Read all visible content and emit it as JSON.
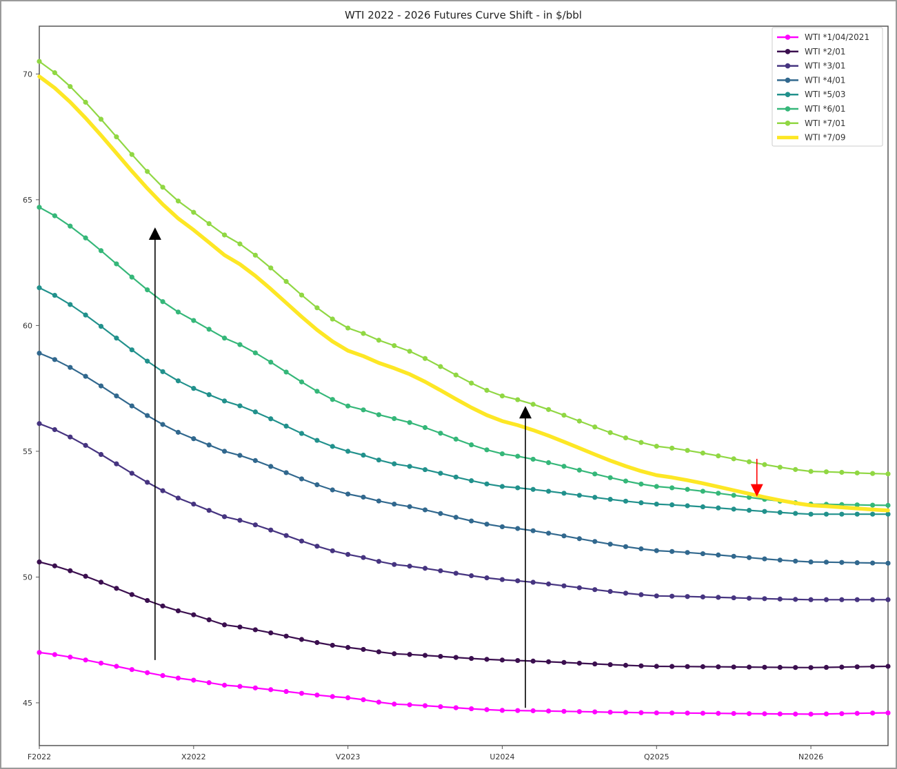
{
  "chart_data": {
    "type": "line",
    "title": "WTI 2022 - 2026 Futures Curve Shift - in $/bbl",
    "xlabel": "",
    "ylabel": "",
    "x_tick_labels": [
      "F2022",
      "X2022",
      "V2023",
      "U2024",
      "Q2025",
      "N2026"
    ],
    "y_ticks": [
      45,
      50,
      55,
      60,
      65,
      70
    ],
    "ylim": [
      43.3,
      71.9
    ],
    "grid": false,
    "legend_position": "top-right",
    "series": [
      {
        "name": "WTI *1/04/2021",
        "color": "#ff00ff",
        "marker": true,
        "key": [
          [
            0,
            47.0
          ],
          [
            10,
            45.9
          ],
          [
            12,
            45.7
          ],
          [
            20,
            45.2
          ],
          [
            23,
            44.95
          ],
          [
            30,
            44.7
          ],
          [
            40,
            44.6
          ],
          [
            50,
            44.55
          ],
          [
            55,
            44.6
          ]
        ]
      },
      {
        "name": "WTI *2/01",
        "color": "#3b0f4f",
        "marker": true,
        "key": [
          [
            0,
            50.6
          ],
          [
            10,
            48.5
          ],
          [
            12,
            48.1
          ],
          [
            20,
            47.2
          ],
          [
            23,
            46.95
          ],
          [
            30,
            46.7
          ],
          [
            40,
            46.45
          ],
          [
            50,
            46.4
          ],
          [
            55,
            46.45
          ]
        ]
      },
      {
        "name": "WTI *3/01",
        "color": "#463480",
        "marker": true,
        "key": [
          [
            0,
            56.1
          ],
          [
            10,
            52.9
          ],
          [
            12,
            52.4
          ],
          [
            20,
            50.9
          ],
          [
            23,
            50.5
          ],
          [
            30,
            49.9
          ],
          [
            40,
            49.25
          ],
          [
            50,
            49.1
          ],
          [
            55,
            49.1
          ]
        ]
      },
      {
        "name": "WTI *4/01",
        "color": "#31688e",
        "marker": true,
        "key": [
          [
            0,
            58.9
          ],
          [
            10,
            55.5
          ],
          [
            12,
            55.0
          ],
          [
            20,
            53.3
          ],
          [
            23,
            52.9
          ],
          [
            30,
            52.0
          ],
          [
            40,
            51.05
          ],
          [
            50,
            50.6
          ],
          [
            55,
            50.55
          ]
        ]
      },
      {
        "name": "WTI *5/03",
        "color": "#21918c",
        "marker": true,
        "key": [
          [
            0,
            61.5
          ],
          [
            10,
            57.5
          ],
          [
            12,
            57.0
          ],
          [
            20,
            55.0
          ],
          [
            23,
            54.5
          ],
          [
            30,
            53.6
          ],
          [
            40,
            52.9
          ],
          [
            50,
            52.5
          ],
          [
            55,
            52.5
          ]
        ]
      },
      {
        "name": "WTI *6/01",
        "color": "#35b779",
        "marker": true,
        "key": [
          [
            0,
            64.7
          ],
          [
            10,
            60.2
          ],
          [
            12,
            59.5
          ],
          [
            20,
            56.8
          ],
          [
            23,
            56.3
          ],
          [
            30,
            54.9
          ],
          [
            40,
            53.6
          ],
          [
            50,
            52.9
          ],
          [
            55,
            52.85
          ]
        ]
      },
      {
        "name": "WTI *7/01",
        "color": "#90d743",
        "marker": true,
        "key": [
          [
            0,
            70.5
          ],
          [
            10,
            64.5
          ],
          [
            12,
            63.6
          ],
          [
            20,
            59.9
          ],
          [
            23,
            59.2
          ],
          [
            30,
            57.2
          ],
          [
            40,
            55.2
          ],
          [
            50,
            54.2
          ],
          [
            55,
            54.1
          ]
        ]
      },
      {
        "name": "WTI *7/09",
        "color": "#fde725",
        "marker": false,
        "key": [
          [
            0,
            69.9
          ],
          [
            10,
            63.8
          ],
          [
            12,
            62.8
          ],
          [
            20,
            59.0
          ],
          [
            23,
            58.3
          ],
          [
            30,
            56.2
          ],
          [
            40,
            54.05
          ],
          [
            50,
            52.85
          ],
          [
            55,
            52.65
          ]
        ]
      }
    ],
    "annotations": [
      {
        "type": "arrow",
        "direction": "up",
        "color": "#000000",
        "x": 7.5,
        "y_from": 46.7,
        "y_to": 63.9
      },
      {
        "type": "arrow",
        "direction": "up",
        "color": "#000000",
        "x": 31.5,
        "y_from": 44.8,
        "y_to": 56.8
      },
      {
        "type": "arrow",
        "direction": "down",
        "color": "#ff0000",
        "x": 46.5,
        "y_from": 54.7,
        "y_to": 53.2
      }
    ]
  }
}
